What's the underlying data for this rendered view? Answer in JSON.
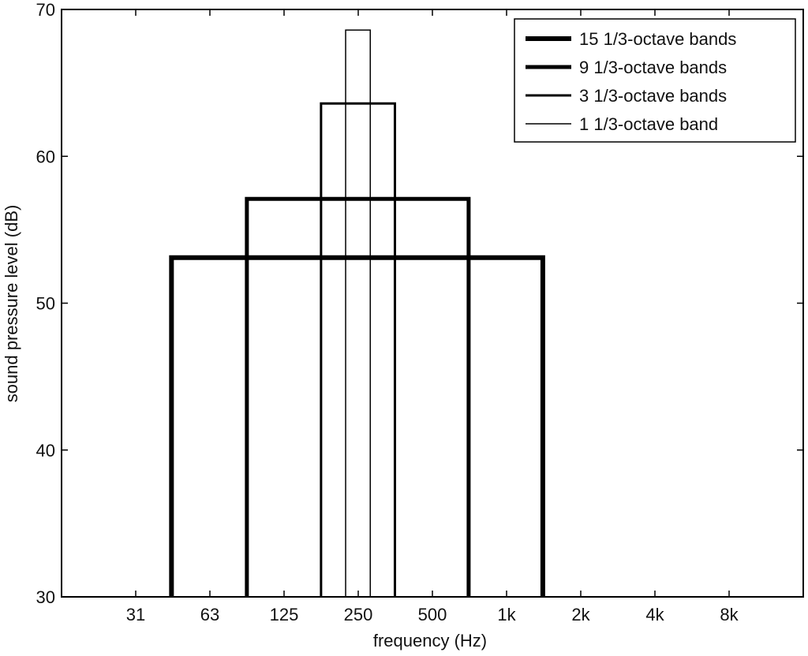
{
  "chart_data": {
    "type": "line",
    "xlabel": "frequency (Hz)",
    "ylabel": "sound pressure level (dB)",
    "x_tick_labels": [
      "31",
      "63",
      "125",
      "250",
      "500",
      "1k",
      "2k",
      "4k",
      "8k"
    ],
    "y_ticks": [
      30,
      40,
      50,
      60,
      70
    ],
    "ylim": [
      30,
      70
    ],
    "x_scale": "log (octave spacing)",
    "grid": false,
    "legend_position": "top-right",
    "series": [
      {
        "name": "15 1/3-octave bands",
        "x_start": 44,
        "x_end": 1414,
        "y": 53.1
      },
      {
        "name": "9 1/3-octave bands",
        "x_start": 89,
        "x_end": 707,
        "y": 57.1
      },
      {
        "name": "3 1/3-octave bands",
        "x_start": 178,
        "x_end": 355,
        "y": 63.6
      },
      {
        "name": "1 1/3-octave band",
        "x_start": 224,
        "x_end": 282,
        "y": 68.6
      }
    ]
  }
}
